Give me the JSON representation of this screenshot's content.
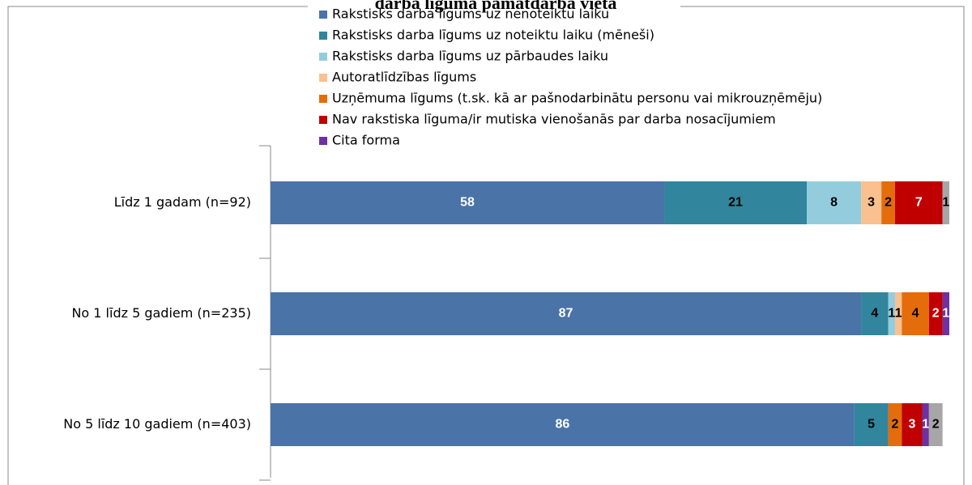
{
  "chart_data": {
    "type": "stacked-bar-horizontal",
    "title": "darba līguma pamatdarba vietā",
    "categories": [
      "Līdz 1 gadam (n=92)",
      "No 1 līdz 5 gadiem (n=235)",
      "No 5 līdz 10 gadiem (n=403)"
    ],
    "xlim": [
      0,
      100
    ],
    "series": [
      {
        "name": "Rakstisks darba līgums uz nenoteiktu laiku",
        "color": "#4a73a8",
        "values": [
          58,
          87,
          86
        ]
      },
      {
        "name": "Rakstisks darba līgums uz noteiktu laiku (mēneši)",
        "color": "#31859c",
        "values": [
          21,
          4,
          5
        ]
      },
      {
        "name": "Rakstisks darba līgums uz pārbaudes laiku",
        "color": "#93cddd",
        "values": [
          8,
          1,
          null
        ]
      },
      {
        "name": "Autoratlīdzības līgums",
        "color": "#fac090",
        "values": [
          3,
          1,
          null
        ]
      },
      {
        "name": "Uzņēmuma līgums (t.sk. kā ar pašnodarbinātu personu vai mikrouzņēmēju)",
        "color": "#e46c0a",
        "values": [
          2,
          4,
          2
        ]
      },
      {
        "name": "Nav rakstiska līguma/ir mutiska vienošanās par darba nosacījumiem",
        "color": "#c00000",
        "values": [
          7,
          2,
          3
        ]
      },
      {
        "name": "Cita forma",
        "color": "#7030a0",
        "values": [
          null,
          1,
          1
        ]
      },
      {
        "color": "#a6a6a6",
        "values": [
          1,
          null,
          2
        ]
      }
    ]
  }
}
